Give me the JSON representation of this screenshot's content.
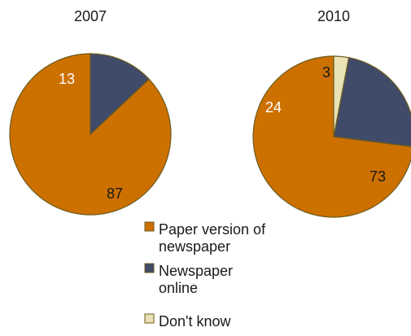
{
  "chart_data": {
    "type": "pie",
    "series_names": [
      "Paper version of newspaper",
      "Newspaper online",
      "Don't know"
    ],
    "colors": {
      "Paper version of newspaper": "#CC7000",
      "Newspaper online": "#404B69",
      "Don't know": "#E8E2B4",
      "outline": "#6B5B1E"
    },
    "pies": [
      {
        "title": "2007",
        "slices": [
          {
            "name": "Paper version of newspaper",
            "value": 87,
            "label": "87"
          },
          {
            "name": "Newspaper online",
            "value": 13,
            "label": "13"
          }
        ]
      },
      {
        "title": "2010",
        "slices": [
          {
            "name": "Paper version of newspaper",
            "value": 73,
            "label": "73"
          },
          {
            "name": "Newspaper online",
            "value": 24,
            "label": "24"
          },
          {
            "name": "Don't know",
            "value": 3,
            "label": "3"
          }
        ]
      }
    ],
    "legend": {
      "position": "bottom-center",
      "entries": [
        {
          "lines": [
            "Paper version of",
            "newspaper"
          ],
          "series": "Paper version of newspaper"
        },
        {
          "lines": [
            "Newspaper",
            "online"
          ],
          "series": "Newspaper online"
        },
        {
          "lines": [
            "Don't know"
          ],
          "series": "Don't know"
        }
      ]
    }
  }
}
